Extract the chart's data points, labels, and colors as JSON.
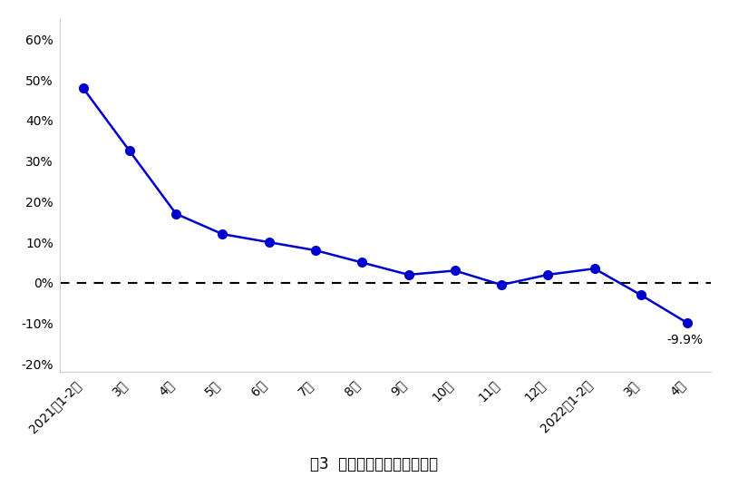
{
  "categories": [
    "2021年1-2月",
    "3月",
    "4月",
    "5月",
    "6月",
    "7月",
    "8月",
    "9月",
    "10月",
    "11月",
    "12月",
    "2022年1-2月",
    "3月",
    "4月"
  ],
  "values": [
    48.0,
    32.5,
    17.0,
    12.0,
    10.0,
    8.0,
    5.0,
    2.0,
    3.0,
    -0.5,
    2.0,
    3.5,
    -3.0,
    -9.9
  ],
  "line_color": "#0000CC",
  "marker_color": "#0000CC",
  "dashed_line_color": "#000000",
  "annotation_text": "-9.9%",
  "title": "图3  货运量月度同比增速变化",
  "ylim": [
    -22,
    65
  ],
  "yticks": [
    -20,
    -10,
    0,
    10,
    20,
    30,
    40,
    50,
    60
  ],
  "ytick_labels": [
    "-20%",
    "-10%",
    "0%",
    "10%",
    "20%",
    "30%",
    "40%",
    "50%",
    "60%"
  ],
  "background_color": "#FFFFFF",
  "plot_bg_color": "#FFFFFF",
  "title_fontsize": 12,
  "tick_fontsize": 10
}
